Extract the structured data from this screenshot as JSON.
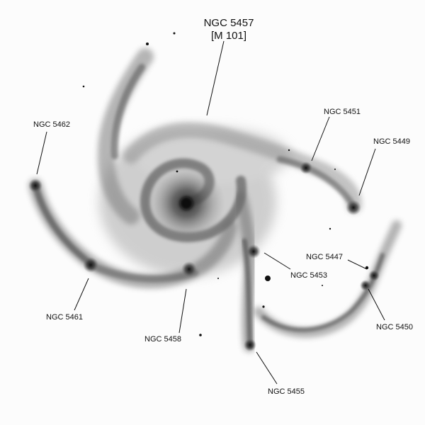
{
  "figure": {
    "title": "NGC 5457",
    "subtitle": "[M 101]",
    "labels": [
      {
        "key": "ngc5462",
        "text": "NGC 5462"
      },
      {
        "key": "ngc5451",
        "text": "NGC 5451"
      },
      {
        "key": "ngc5449",
        "text": "NGC 5449"
      },
      {
        "key": "ngc5447",
        "text": "NGC 5447"
      },
      {
        "key": "ngc5453",
        "text": "NGC 5453"
      },
      {
        "key": "ngc5461",
        "text": "NGC 5461"
      },
      {
        "key": "ngc5458",
        "text": "NGC 5458"
      },
      {
        "key": "ngc5450",
        "text": "NGC 5450"
      },
      {
        "key": "ngc5455",
        "text": "NGC 5455"
      }
    ]
  },
  "colors": {
    "background": "#fcfcfc",
    "ink": "#111111",
    "galaxy_core": "#1a1a1a",
    "galaxy_haze": "#9a9a9a"
  }
}
